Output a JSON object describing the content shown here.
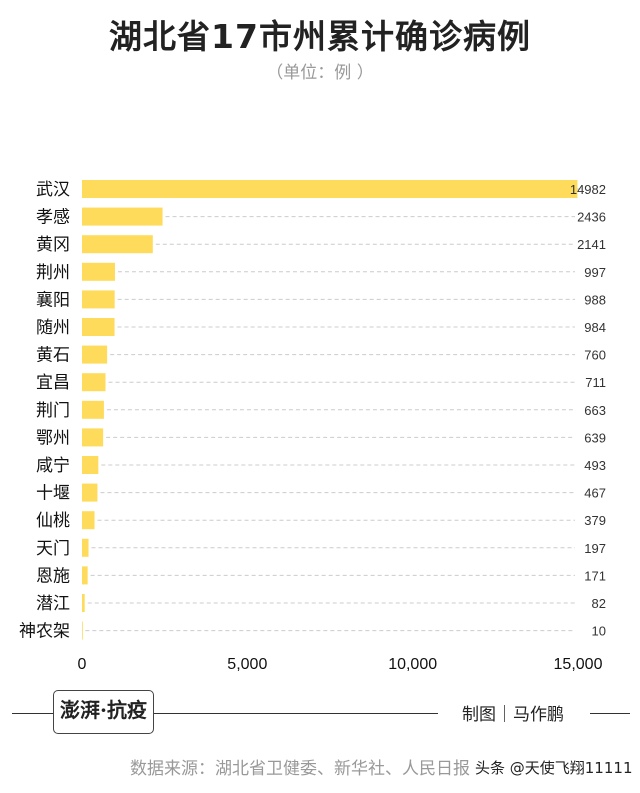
{
  "chart_data": {
    "type": "bar",
    "orientation": "horizontal",
    "title": "湖北省17市州累计确诊病例",
    "subtitle": "（单位：例 ）",
    "categories": [
      "武汉",
      "孝感",
      "黄冈",
      "荆州",
      "襄阳",
      "随州",
      "黄石",
      "宜昌",
      "荆门",
      "鄂州",
      "咸宁",
      "十堰",
      "仙桃",
      "天门",
      "恩施",
      "潜江",
      "神农架"
    ],
    "values": [
      14982,
      2436,
      2141,
      997,
      988,
      984,
      760,
      711,
      663,
      639,
      493,
      467,
      379,
      197,
      171,
      82,
      10
    ],
    "xlim": [
      0,
      15000
    ],
    "xticks": [
      "0",
      "5,000",
      "10,000",
      "15,000"
    ],
    "xtick_values": [
      0,
      5000,
      10000,
      15000
    ],
    "grid": false,
    "bar_color": "#FEDB5A"
  },
  "footer": {
    "logo": "澎湃·抗疫",
    "credit": "制图｜马作鹏",
    "source": "数据来源：湖北省卫健委、新华社、人民日报",
    "watermark": "头条 @天使飞翔11111"
  }
}
